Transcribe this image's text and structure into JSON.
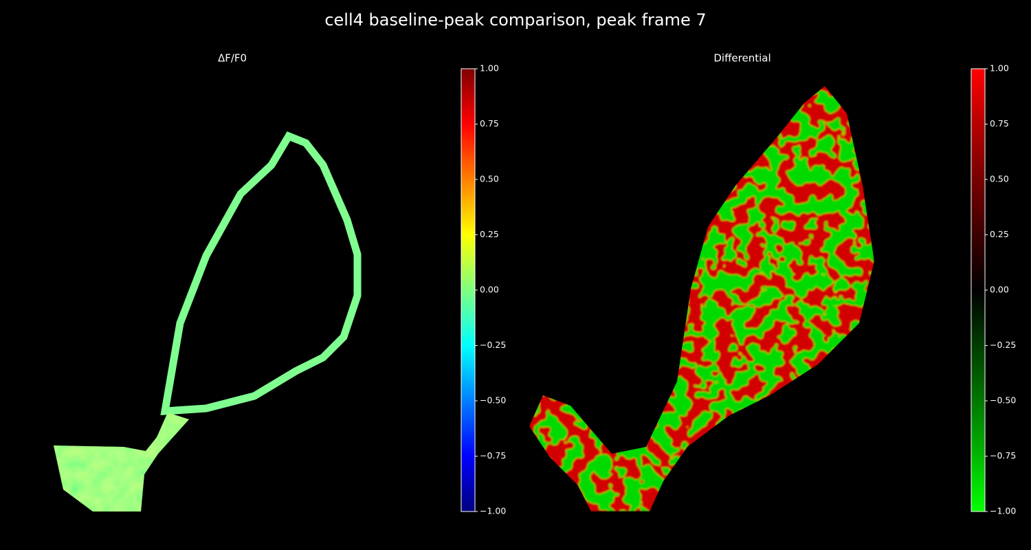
{
  "title": "cell4 baseline-peak comparison, peak frame 7",
  "chart_data": [
    {
      "type": "image",
      "title": "ΔF/F0",
      "colors": [
        "#00007f",
        "#0000ff",
        "#007fff",
        "#00ffff",
        "#7fff7f",
        "#ffff00",
        "#ff7f00",
        "#ff0000",
        "#7f0000"
      ],
      "clim": [
        -1,
        1
      ],
      "cticks": [
        {
          "value": -1,
          "label": "−1.00"
        },
        {
          "value": -0.75,
          "label": "−0.75"
        },
        {
          "value": -0.5,
          "label": "−0.50"
        },
        {
          "value": -0.25,
          "label": "−0.25"
        },
        {
          "value": 0,
          "label": "0.00"
        },
        {
          "value": 0.25,
          "label": "0.25"
        },
        {
          "value": 0.5,
          "label": "0.50"
        },
        {
          "value": 0.75,
          "label": "0.75"
        },
        {
          "value": 1,
          "label": "1.00"
        }
      ]
    },
    {
      "type": "image",
      "title": "Differential",
      "colors": [
        "#00ff00",
        "#00a000",
        "#005000",
        "#000000",
        "#500000",
        "#a00000",
        "#ff0000"
      ],
      "clim": [
        -1,
        1
      ],
      "cticks": [
        {
          "value": -1,
          "label": "−1.00"
        },
        {
          "value": -0.75,
          "label": "−0.75"
        },
        {
          "value": -0.5,
          "label": "−0.50"
        },
        {
          "value": -0.25,
          "label": "−0.25"
        },
        {
          "value": 0,
          "label": "0.00"
        },
        {
          "value": 0.25,
          "label": "0.25"
        },
        {
          "value": 0.5,
          "label": "0.50"
        },
        {
          "value": 0.75,
          "label": "0.75"
        },
        {
          "value": 1,
          "label": "1.00"
        }
      ]
    }
  ]
}
